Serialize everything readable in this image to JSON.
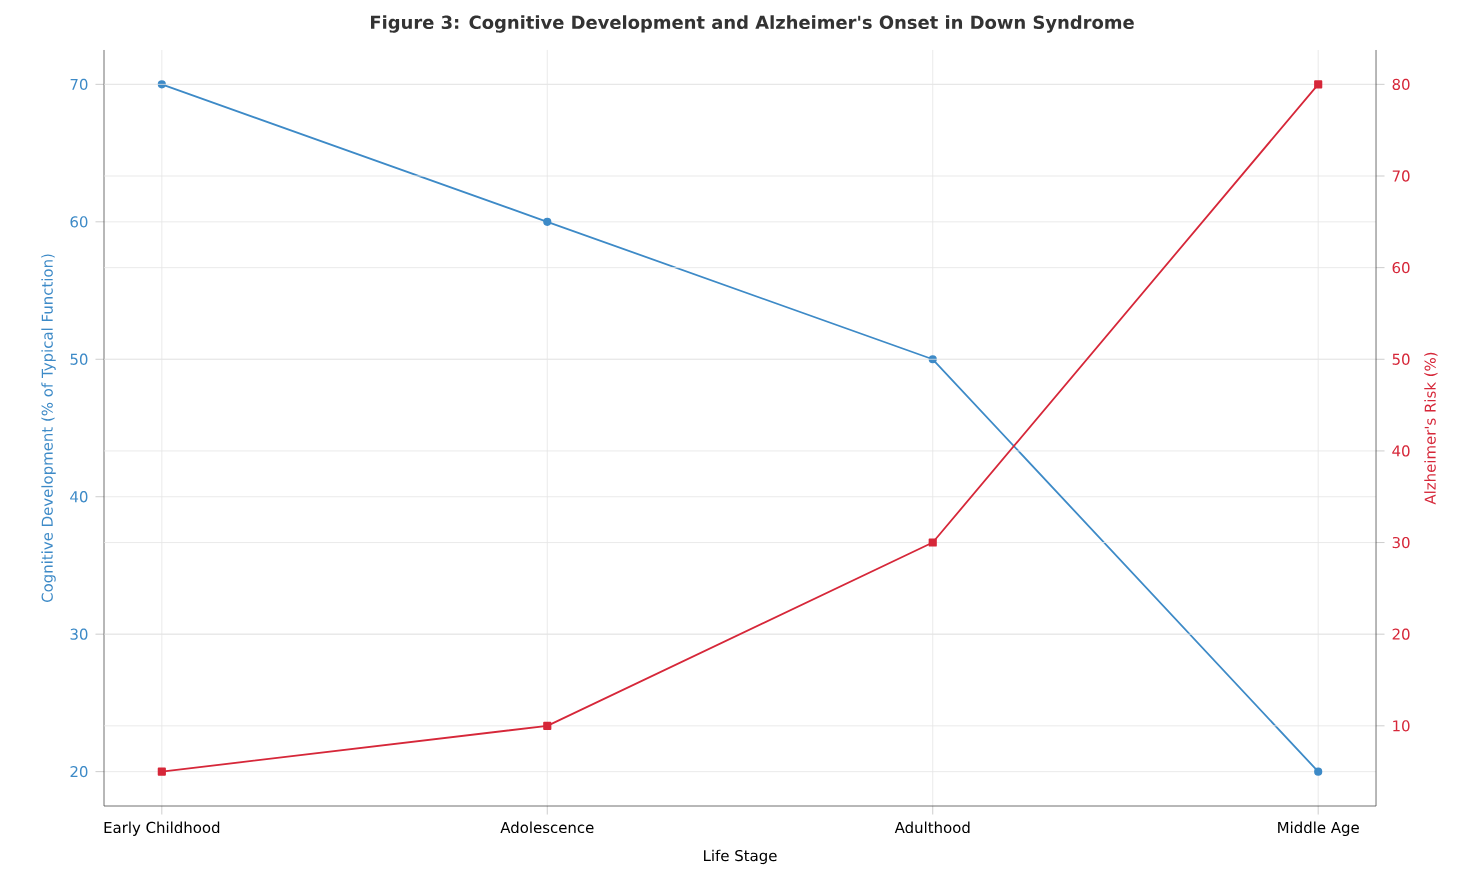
{
  "chart_data": {
    "type": "line",
    "title": "Figure 3: Cognitive Development and Alzheimer's Onset in Down Syndrome",
    "xlabel": "Life Stage",
    "ylabel": "Cognitive Development (% of Typical Function)",
    "y2label": "Alzheimer's Risk (%)",
    "categories": [
      "Early Childhood",
      "Adolescence",
      "Adulthood",
      "Middle Age"
    ],
    "series": [
      {
        "color": "#3d8ac7",
        "values": [
          70,
          60,
          50,
          20
        ],
        "marker": "circle"
      },
      {
        "color": "#d62739",
        "values": [
          5,
          10,
          30,
          80
        ],
        "axis": "y2",
        "marker": "square"
      }
    ],
    "ylim": [
      17.5,
      72.5
    ],
    "yticks": [
      20,
      30,
      40,
      50,
      60,
      70
    ],
    "y2lim": [
      1.25,
      83.75
    ],
    "y2ticks": [
      10,
      20,
      30,
      40,
      50,
      60,
      70,
      80
    ],
    "grid": true
  }
}
